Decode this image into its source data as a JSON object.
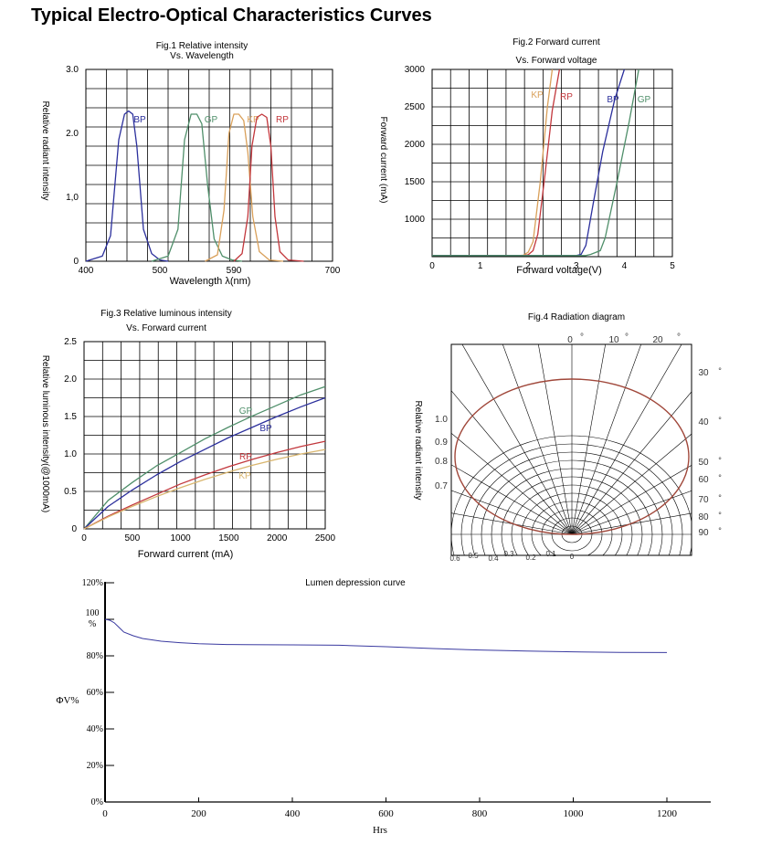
{
  "page": {
    "title": "Typical Electro-Optical Characteristics Curves"
  },
  "chart_data": [
    {
      "type": "line",
      "title": "Fig.1 Relative intensity",
      "subtitle": "Vs. Wavelength",
      "xlabel": "Wavelength λ(nm)",
      "ylabel": "Relative radiant intensity",
      "x_tick_labels": [
        "400",
        "500",
        "590",
        "700"
      ],
      "y_tick_labels": [
        "0",
        "1,0",
        "2.0",
        "3.0"
      ],
      "xlim": [
        400,
        700
      ],
      "ylim": [
        0,
        3.0
      ],
      "grid": true,
      "series": [
        {
          "name": "BP",
          "color": "#2b2f9c",
          "x": [
            400,
            420,
            430,
            440,
            447,
            452,
            457,
            462,
            470,
            480,
            490,
            500
          ],
          "y": [
            0,
            0.08,
            0.4,
            1.9,
            2.3,
            2.35,
            2.3,
            1.8,
            0.5,
            0.12,
            0.02,
            0
          ]
        },
        {
          "name": "GP",
          "color": "#4f8f6a",
          "x": [
            480,
            500,
            512,
            520,
            528,
            535,
            541,
            548,
            556,
            566,
            578,
            590
          ],
          "y": [
            0,
            0.08,
            0.5,
            1.9,
            2.3,
            2.3,
            2.15,
            1.2,
            0.35,
            0.08,
            0.02,
            0
          ]
        },
        {
          "name": "KP",
          "color": "#d9a05a",
          "x": [
            545,
            560,
            568,
            574,
            580,
            586,
            592,
            597,
            603,
            611,
            623,
            640
          ],
          "y": [
            0,
            0.1,
            0.8,
            2.0,
            2.3,
            2.3,
            2.2,
            1.7,
            0.7,
            0.15,
            0.02,
            0
          ]
        },
        {
          "name": "RP",
          "color": "#c2373c",
          "x": [
            580,
            590,
            597,
            602,
            608,
            614,
            620,
            625,
            630,
            636,
            646,
            665
          ],
          "y": [
            0,
            0.12,
            0.7,
            1.8,
            2.25,
            2.3,
            2.25,
            1.8,
            0.7,
            0.15,
            0.02,
            0
          ]
        }
      ]
    },
    {
      "type": "line",
      "title": "Fig.2 Forward current",
      "subtitle": "Vs. Forward voltage",
      "xlabel": "Forward voltage(V)",
      "ylabel": "Forward current (mA)",
      "x_tick_labels": [
        "0",
        "1",
        "2",
        "3",
        "4",
        "5"
      ],
      "y_tick_labels": [
        "1000",
        "1500",
        "2000",
        "2500",
        "3000"
      ],
      "xlim": [
        0,
        5
      ],
      "ylim": [
        500,
        3000
      ],
      "grid": true,
      "series": [
        {
          "name": "KP",
          "color": "#d9a05a",
          "x": [
            0,
            1.8,
            1.9,
            2.0,
            2.1,
            2.25,
            2.4,
            2.5
          ],
          "y": [
            515,
            515,
            520,
            560,
            700,
            1500,
            2500,
            3000
          ]
        },
        {
          "name": "RP",
          "color": "#c2373c",
          "x": [
            0,
            1.9,
            2.0,
            2.1,
            2.2,
            2.35,
            2.5,
            2.65
          ],
          "y": [
            515,
            515,
            525,
            580,
            800,
            1600,
            2450,
            3000
          ]
        },
        {
          "name": "BP",
          "color": "#2b2f9c",
          "x": [
            0,
            3.0,
            3.1,
            3.2,
            3.35,
            3.55,
            3.8,
            4.0
          ],
          "y": [
            515,
            515,
            530,
            650,
            1200,
            1900,
            2600,
            3000
          ]
        },
        {
          "name": "GP",
          "color": "#4f8f6a",
          "x": [
            0,
            3.2,
            3.3,
            3.5,
            3.6,
            3.85,
            4.1,
            4.3
          ],
          "y": [
            515,
            515,
            530,
            580,
            750,
            1500,
            2300,
            3000
          ]
        }
      ]
    },
    {
      "type": "line",
      "title": "Fig.3 Relative luminous intensity",
      "subtitle": "Vs. Forward current",
      "xlabel": "Forward current (mA)",
      "ylabel": "Relative luminous intensity(@1000mA)",
      "x_tick_labels": [
        "0",
        "500",
        "1000",
        "1500",
        "2000",
        "2500"
      ],
      "y_tick_labels": [
        "0",
        "0.5",
        "1.0",
        "1.5",
        "2.0",
        "2.5"
      ],
      "xlim": [
        0,
        2500
      ],
      "ylim": [
        0,
        2.5
      ],
      "grid": true,
      "series": [
        {
          "name": "GP",
          "color": "#4f8f6a",
          "x": [
            0,
            250,
            500,
            750,
            1000,
            1250,
            1500,
            1750,
            2000,
            2250,
            2500
          ],
          "y": [
            0,
            0.38,
            0.62,
            0.84,
            1.02,
            1.2,
            1.36,
            1.51,
            1.65,
            1.79,
            1.9
          ]
        },
        {
          "name": "BP",
          "color": "#2b2f9c",
          "x": [
            0,
            250,
            500,
            750,
            1000,
            1250,
            1500,
            1750,
            2000,
            2250,
            2500
          ],
          "y": [
            0,
            0.3,
            0.52,
            0.72,
            0.9,
            1.06,
            1.22,
            1.36,
            1.5,
            1.63,
            1.75
          ]
        },
        {
          "name": "RP",
          "color": "#c2373c",
          "x": [
            0,
            250,
            500,
            750,
            1000,
            1250,
            1500,
            1750,
            2000,
            2250,
            2500
          ],
          "y": [
            0,
            0.17,
            0.32,
            0.46,
            0.6,
            0.72,
            0.83,
            0.93,
            1.02,
            1.1,
            1.17
          ]
        },
        {
          "name": "KP",
          "color": "#d9b66f",
          "x": [
            0,
            250,
            500,
            750,
            1000,
            1250,
            1500,
            1750,
            2000,
            2250,
            2500
          ],
          "y": [
            0,
            0.16,
            0.3,
            0.43,
            0.55,
            0.66,
            0.76,
            0.85,
            0.93,
            1.0,
            1.06
          ]
        }
      ]
    },
    {
      "type": "line",
      "title": "Fig.4  Radiation diagram",
      "ylabel": "Relative radiant intensity",
      "angle_labels_top": [
        "0",
        "°",
        "10",
        "°",
        "20",
        "°"
      ],
      "angle_labels_right": [
        "30",
        "40",
        "50",
        "60",
        "70",
        "80",
        "90"
      ],
      "degree_mark": "°",
      "radial_labels_left": [
        "1.0",
        "0.9",
        "0.8",
        "0.7"
      ],
      "radial_labels_bottom": [
        "0.6",
        "0.5",
        "0.4",
        "0.3",
        "0.2",
        "0.1",
        "0"
      ],
      "grid": true,
      "series": [
        {
          "name": "",
          "color": "#a0473a",
          "note": "ellipse",
          "angle_deg": [
            0,
            20,
            40,
            60,
            80,
            90
          ],
          "value": [
            1.0,
            0.95,
            0.8,
            0.6,
            0.3,
            0.0
          ]
        }
      ]
    },
    {
      "type": "line",
      "title": "Lumen depression curve",
      "xlabel": "Hrs",
      "ylabel": "ΦV%",
      "x_tick_labels": [
        "0",
        "200",
        "400",
        "600",
        "800",
        "1000",
        "1200"
      ],
      "y_tick_labels": [
        "0%",
        "20%",
        "40%",
        "60%",
        "80%",
        "100\n%",
        "120%"
      ],
      "xlim": [
        0,
        1300
      ],
      "ylim": [
        0,
        120
      ],
      "grid": false,
      "series": [
        {
          "name": "",
          "color": "#3a3aa0",
          "x": [
            0,
            10,
            20,
            30,
            40,
            60,
            80,
            120,
            160,
            200,
            260,
            300,
            400,
            500,
            600,
            700,
            800,
            900,
            1000,
            1100,
            1200
          ],
          "y": [
            100,
            99.5,
            98,
            95.5,
            93,
            91,
            89.5,
            88,
            87.2,
            86.6,
            86.2,
            86.1,
            86.0,
            85.8,
            85.0,
            84.0,
            83.2,
            82.6,
            82.2,
            81.9,
            81.8
          ]
        }
      ]
    }
  ]
}
